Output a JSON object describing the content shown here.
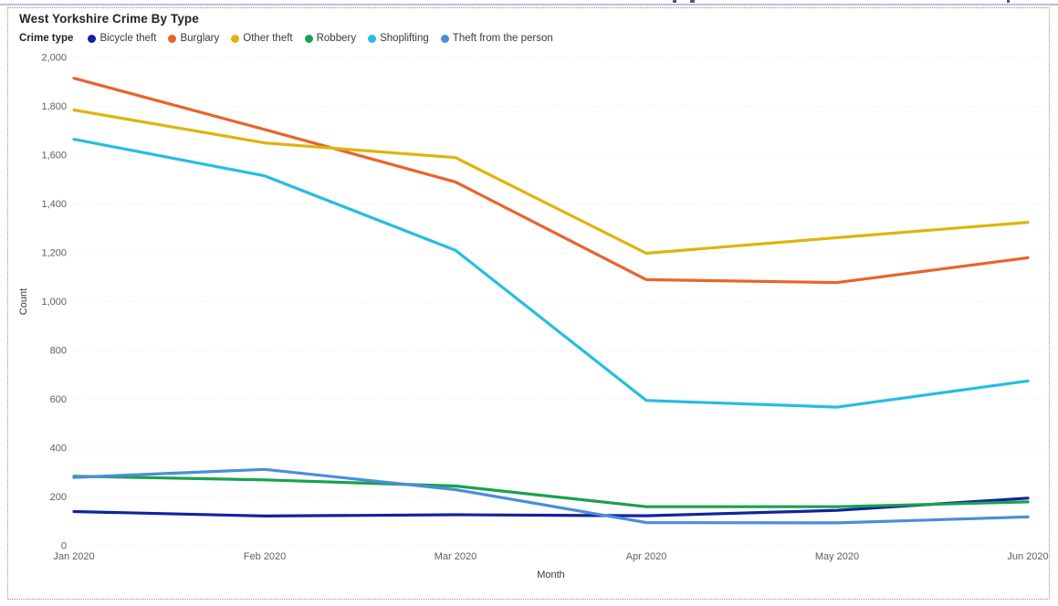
{
  "page": {
    "top_divider_color": "#b6c4dc"
  },
  "visual": {
    "title": "West Yorkshire Crime By Type",
    "legend": {
      "label": "Crime type",
      "items": [
        {
          "name": "Bicycle theft",
          "color": "#12239E"
        },
        {
          "name": "Burglary",
          "color": "#E8642C"
        },
        {
          "name": "Other theft",
          "color": "#DDB50C"
        },
        {
          "name": "Robbery",
          "color": "#18A24D"
        },
        {
          "name": "Shoplifting",
          "color": "#27BDE0"
        },
        {
          "name": "Theft from the person",
          "color": "#4A8DDC"
        }
      ]
    }
  },
  "chart_data": {
    "type": "line",
    "title": "West Yorkshire Crime By Type",
    "xlabel": "Month",
    "ylabel": "Count",
    "categories": [
      "Jan 2020",
      "Feb 2020",
      "Mar 2020",
      "Apr 2020",
      "May 2020",
      "Jun 2020"
    ],
    "series": [
      {
        "name": "Bicycle theft",
        "color": "#12239E",
        "values": [
          140,
          122,
          127,
          123,
          145,
          195
        ]
      },
      {
        "name": "Burglary",
        "color": "#E8642C",
        "values": [
          1915,
          1705,
          1490,
          1090,
          1078,
          1180
        ]
      },
      {
        "name": "Other theft",
        "color": "#DDB50C",
        "values": [
          1785,
          1650,
          1590,
          1198,
          1262,
          1325
        ]
      },
      {
        "name": "Robbery",
        "color": "#18A24D",
        "values": [
          285,
          270,
          245,
          160,
          160,
          180
        ]
      },
      {
        "name": "Shoplifting",
        "color": "#27BDE0",
        "values": [
          1665,
          1515,
          1210,
          595,
          568,
          675
        ]
      },
      {
        "name": "Theft from the person",
        "color": "#4A8DDC",
        "values": [
          280,
          313,
          230,
          95,
          94,
          118
        ]
      }
    ],
    "ylim": [
      0,
      2000
    ],
    "ytick_step": 200,
    "ytick_labels": [
      "0",
      "200",
      "400",
      "600",
      "800",
      "1,000",
      "1,200",
      "1,400",
      "1,600",
      "1,800",
      "2,000"
    ],
    "grid": "horizontal-dotted",
    "gridline_color": "#e2e2e2",
    "axis_text_color": "#605E5C",
    "legend_position": "top"
  }
}
